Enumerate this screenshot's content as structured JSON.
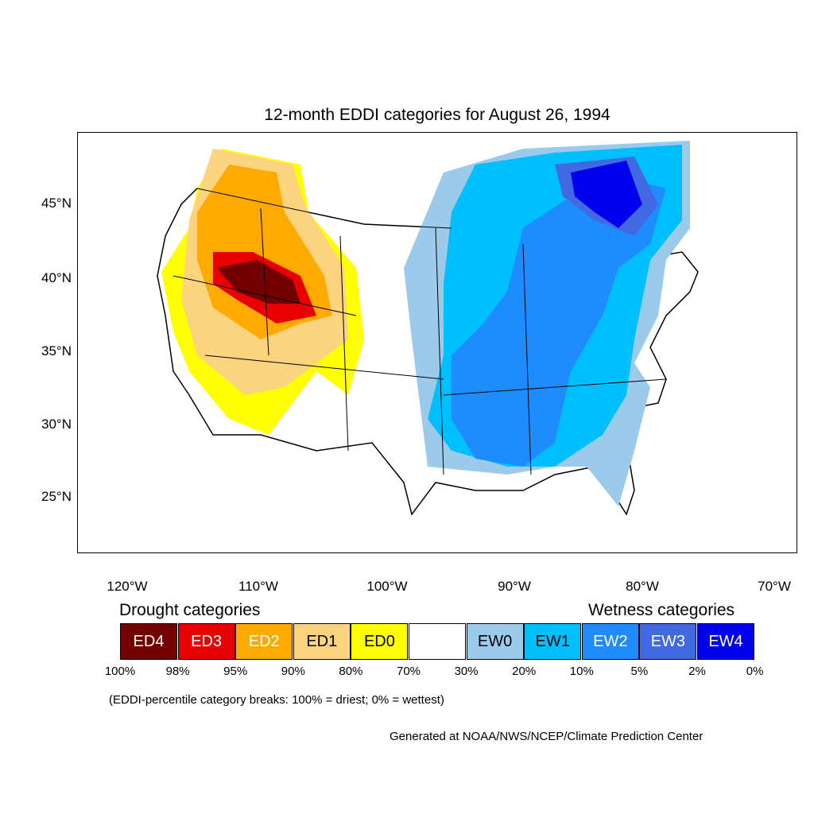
{
  "title": "12-month EDDI categories for August 26, 1994",
  "map": {
    "lat_labels": [
      "45°N",
      "40°N",
      "35°N",
      "30°N",
      "25°N"
    ],
    "lon_labels": [
      "120°W",
      "110°W",
      "100°W",
      "90°W",
      "80°W",
      "70°W"
    ],
    "region_names": [
      "contiguous-us-outline",
      "west-drought-region",
      "east-wetness-region"
    ]
  },
  "legend": {
    "drought_title": "Drought categories",
    "wetness_title": "Wetness categories",
    "categories": [
      {
        "label": "ED4",
        "color": "#730000",
        "text_color": "#ffffff"
      },
      {
        "label": "ED3",
        "color": "#e60000",
        "text_color": "#ffffff"
      },
      {
        "label": "ED2",
        "color": "#ffaa00",
        "text_color": "#ffffff"
      },
      {
        "label": "ED1",
        "color": "#fcd37f",
        "text_color": "#000000"
      },
      {
        "label": "ED0",
        "color": "#ffff00",
        "text_color": "#000000"
      },
      {
        "label": "",
        "color": "#ffffff",
        "text_color": "#000000"
      },
      {
        "label": "EW0",
        "color": "#9ccaeb",
        "text_color": "#000000"
      },
      {
        "label": "EW1",
        "color": "#00bfff",
        "text_color": "#000000"
      },
      {
        "label": "EW2",
        "color": "#1e8cff",
        "text_color": "#ffffff"
      },
      {
        "label": "EW3",
        "color": "#4169e1",
        "text_color": "#ffffff"
      },
      {
        "label": "EW4",
        "color": "#0000ee",
        "text_color": "#ffffff"
      }
    ],
    "breaks": [
      "100%",
      "98%",
      "95%",
      "90%",
      "80%",
      "70%",
      "30%",
      "20%",
      "10%",
      "5%",
      "2%",
      "0%"
    ]
  },
  "note": "(EDDI-percentile category breaks: 100% = driest; 0% = wettest)",
  "credit": "Generated at NOAA/NWS/NCEP/Climate Prediction Center"
}
